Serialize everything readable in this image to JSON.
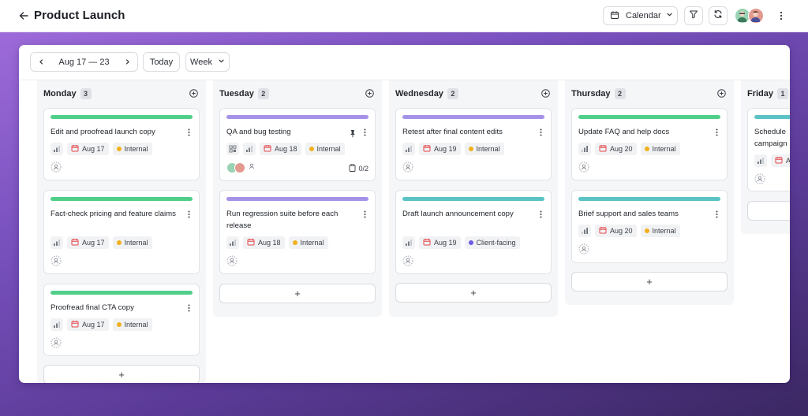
{
  "header": {
    "title": "Product Launch",
    "view_label": "Calendar",
    "icons": [
      "back-arrow-icon",
      "calendar-icon",
      "chevron-down-icon",
      "filter-icon",
      "refresh-icon",
      "more-vertical-icon"
    ]
  },
  "toolbar": {
    "date_range": "Aug 17 — 23",
    "today_label": "Today",
    "period_label": "Week"
  },
  "colors": {
    "green": "#4fcf8a",
    "purple": "#a592e8",
    "teal": "#5bc3c6",
    "internal": "#f2b01e",
    "client_facing": "#6a5be0",
    "date_icon": "#e5484d"
  },
  "columns": [
    {
      "name": "Monday",
      "count": "3",
      "cards": [
        {
          "title": "Edit and proofread launch copy",
          "date": "Aug 17",
          "tag": "Internal"
        },
        {
          "title": "Fact-check pricing and feature claims",
          "date": "Aug 17",
          "tag": "Internal"
        },
        {
          "title": "Proofread final CTA copy",
          "date": "Aug 17",
          "tag": "Internal"
        }
      ]
    },
    {
      "name": "Tuesday",
      "count": "2",
      "cards": [
        {
          "title": "QA and bug testing",
          "date": "Aug 18",
          "tag": "Internal",
          "checklist": "0/2"
        },
        {
          "title": "Run regression suite before each release",
          "date": "Aug 18",
          "tag": "Internal"
        }
      ]
    },
    {
      "name": "Wednesday",
      "count": "2",
      "cards": [
        {
          "title": "Retest after final content edits",
          "date": "Aug 19",
          "tag": "Internal"
        },
        {
          "title": "Draft launch announcement copy",
          "date": "Aug 19",
          "tag": "Client-facing"
        }
      ]
    },
    {
      "name": "Thursday",
      "count": "2",
      "cards": [
        {
          "title": "Update FAQ and help docs",
          "date": "Aug 20",
          "tag": "Internal"
        },
        {
          "title": "Brief support and sales teams",
          "date": "Aug 20",
          "tag": "Internal"
        }
      ]
    },
    {
      "name": "Friday",
      "count": "1",
      "cards": [
        {
          "title": "Schedule campaign",
          "date": "A"
        }
      ]
    }
  ],
  "add_card_symbol": "+"
}
